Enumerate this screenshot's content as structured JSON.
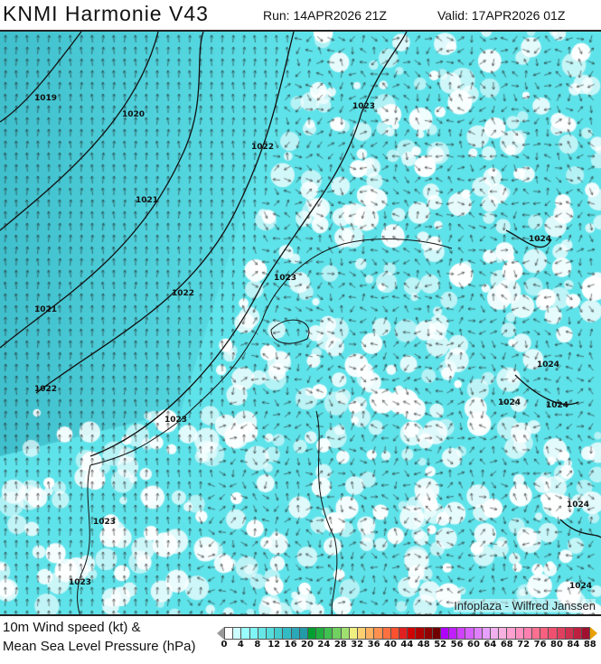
{
  "header": {
    "title": "KNMI Harmonie V43",
    "run": "Run: 14APR2026 21Z",
    "valid": "Valid: 17APR2026 01Z"
  },
  "map": {
    "credit": "Infoplaza - Wilfred Janssen",
    "isobar_labels": [
      "1019",
      "1020",
      "1021",
      "1022",
      "1023",
      "1024"
    ],
    "colors": {
      "sea": "#5fe3ea",
      "dark": "#40bfcc",
      "land_light": "#ffffff",
      "contour": "#111111"
    }
  },
  "legend": {
    "line1": "10m Wind speed (kt) &",
    "line2": "Mean Sea Level Pressure (hPa)",
    "ticks": [
      "0",
      "4",
      "8",
      "12",
      "16",
      "20",
      "24",
      "28",
      "32",
      "36",
      "40",
      "44",
      "48",
      "52",
      "56",
      "60",
      "64",
      "68",
      "72",
      "76",
      "80",
      "84",
      "88"
    ],
    "colors": [
      "#ffffff",
      "#ccffff",
      "#99ffff",
      "#80f5f5",
      "#66e6e6",
      "#55dddd",
      "#44cccc",
      "#33bbc4",
      "#2aa8b8",
      "#229aa8",
      "#00a030",
      "#20b040",
      "#40c050",
      "#70d060",
      "#a0e070",
      "#f0f080",
      "#ffd070",
      "#ffb060",
      "#ff9050",
      "#ff7040",
      "#ff5030",
      "#e02020",
      "#d00000",
      "#b00000",
      "#900000",
      "#700000",
      "#b000ff",
      "#c020ff",
      "#d040ff",
      "#d860ff",
      "#e080ff",
      "#e8a0ff",
      "#f0b0f0",
      "#f8b0e0",
      "#ffa0d0",
      "#ff90c0",
      "#ff80b0",
      "#ff7090",
      "#f86080",
      "#f05070",
      "#e04060",
      "#d03050",
      "#c02040",
      "#a01030"
    ]
  }
}
